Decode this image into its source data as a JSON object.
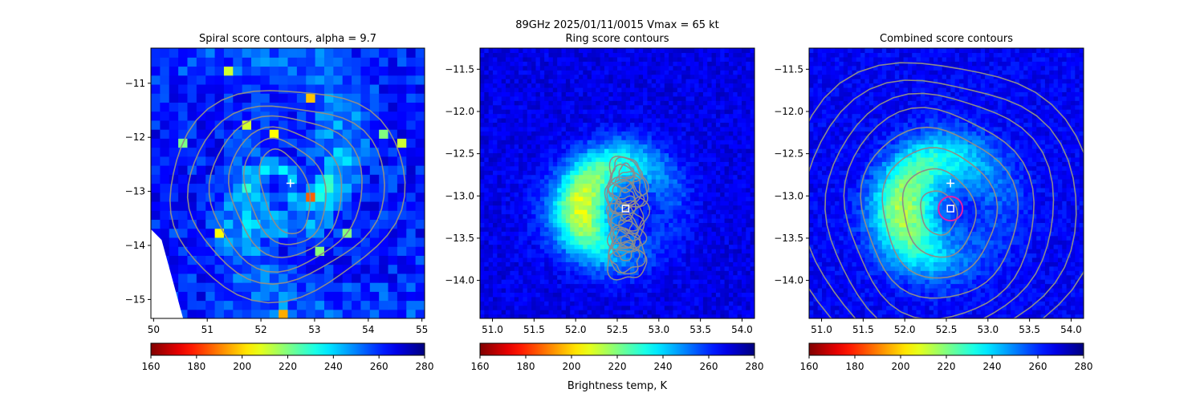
{
  "figure": {
    "suptitle_line1": "89GHz  2025/01/11/0015    Vmax = 65 kt",
    "colorbar_label": "Brightness temp, K"
  },
  "chart_data": [
    {
      "type": "heatmap",
      "title": "Spiral score contours, alpha =  9.7",
      "xlim": [
        49.95,
        55.05
      ],
      "ylim": [
        -15.35,
        -10.35
      ],
      "xticks": [
        50,
        51,
        52,
        53,
        54,
        55
      ],
      "yticks": [
        -15,
        -14,
        -13,
        -12,
        -11
      ],
      "grid": false,
      "colormap": "jet_r",
      "value_range": [
        160,
        280
      ],
      "colorbar_ticks": [
        160,
        180,
        200,
        220,
        240,
        260,
        280
      ],
      "center_marker": {
        "x": 52.55,
        "y": -12.85,
        "type": "plus"
      }
    },
    {
      "type": "heatmap",
      "title": "Ring score contours",
      "xlim": [
        50.85,
        54.15
      ],
      "ylim": [
        -14.45,
        -11.25
      ],
      "xticks": [
        51.0,
        51.5,
        52.0,
        52.5,
        53.0,
        53.5,
        54.0
      ],
      "yticks": [
        -14.0,
        -13.5,
        -13.0,
        -12.5,
        -12.0,
        -11.5
      ],
      "grid": false,
      "colormap": "jet_r",
      "value_range": [
        160,
        280
      ],
      "colorbar_ticks": [
        160,
        180,
        200,
        220,
        240,
        260,
        280
      ],
      "center_marker": {
        "x": 52.6,
        "y": -13.15,
        "type": "square"
      }
    },
    {
      "type": "heatmap",
      "title": "Combined score contours",
      "xlim": [
        50.85,
        54.15
      ],
      "ylim": [
        -14.45,
        -11.25
      ],
      "xticks": [
        51.0,
        51.5,
        52.0,
        52.5,
        53.0,
        53.5,
        54.0
      ],
      "yticks": [
        -14.0,
        -13.5,
        -13.0,
        -12.5,
        -12.0,
        -11.5
      ],
      "grid": false,
      "colormap": "jet_r",
      "value_range": [
        160,
        280
      ],
      "colorbar_ticks": [
        160,
        180,
        200,
        220,
        240,
        260,
        280
      ],
      "center_marker": {
        "x": 52.55,
        "y": -13.15,
        "type": "square"
      },
      "ring_marker": {
        "x": 52.55,
        "y": -13.15,
        "color": "#dd22aa"
      },
      "plus_marker": {
        "x": 52.55,
        "y": -12.85
      }
    }
  ],
  "colors": {
    "contour": "#8c8c8c",
    "marker": "#ffffff",
    "ring": "#dd22aa"
  }
}
